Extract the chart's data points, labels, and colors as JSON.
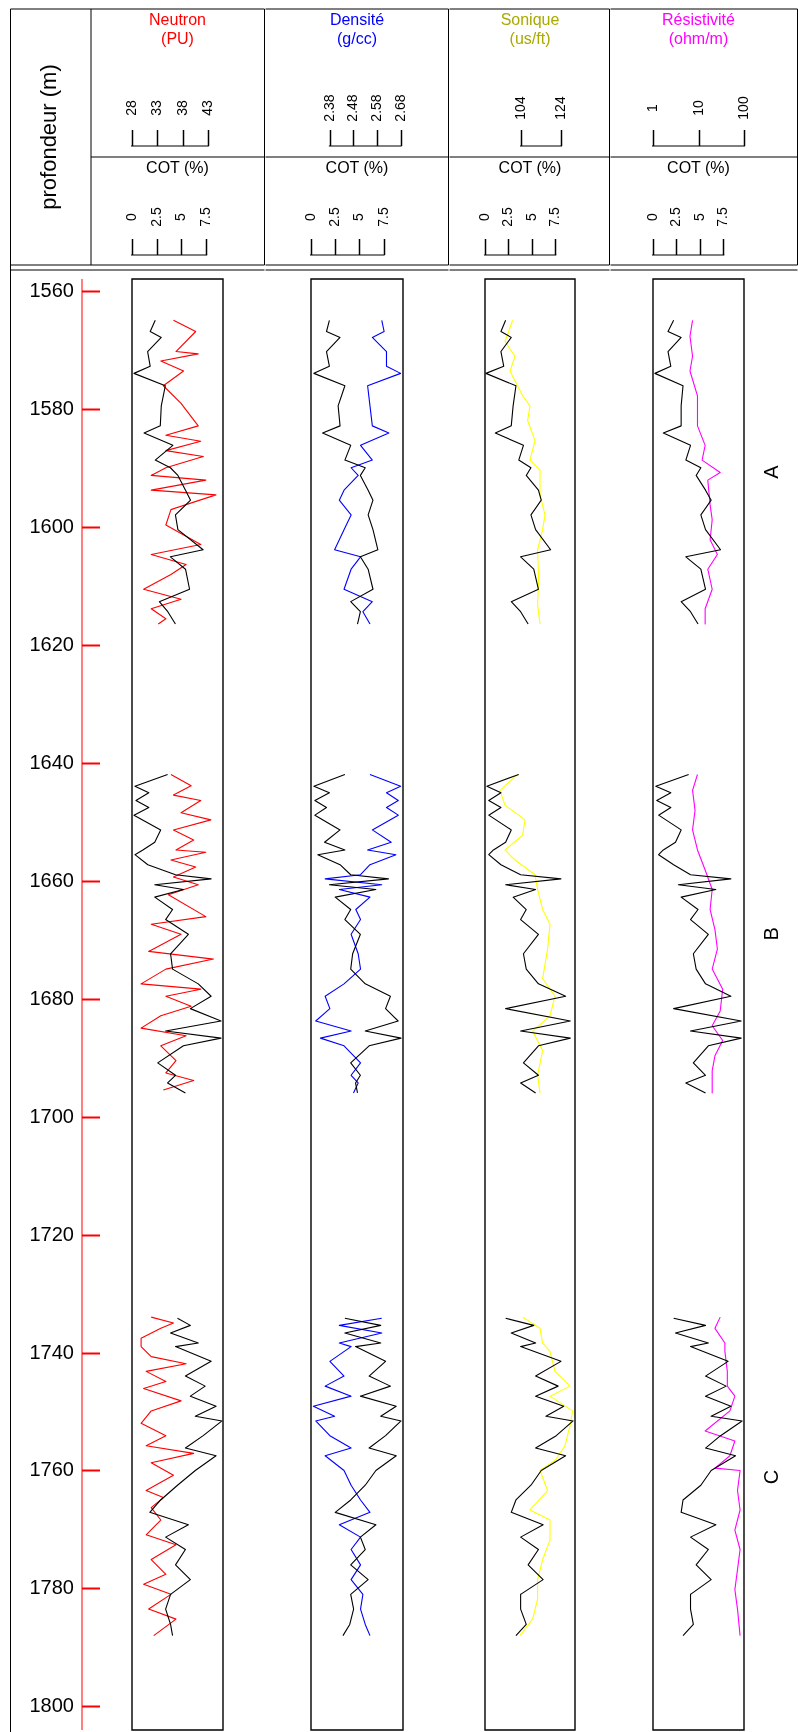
{
  "chart_data": [
    {
      "type": "line",
      "ylabel": "profondeur (m)",
      "xlabel": "Neutron (PU)",
      "x2label": "COT (%)",
      "x2lim": [
        0,
        9.2
      ],
      "x2ticks": [
        0,
        2.5,
        5,
        7.5
      ],
      "xlim": [
        28,
        46
      ],
      "xticks": [
        28,
        33,
        38,
        43
      ],
      "ylim": [
        1804,
        1558
      ],
      "yticks": [
        1560,
        1580,
        1600,
        1620,
        1640,
        1660,
        1680,
        1700,
        1720,
        1740,
        1760,
        1780,
        1800
      ],
      "series": [
        {
          "color": "#000000",
          "axis": "x2",
          "x": [
            2.35,
            1.84,
            2.96,
            1.58,
            1.84,
            0.2,
            3.37,
            2.96,
            2.86,
            1.22,
            4.13,
            2.35,
            3.88,
            4.64,
            5.41,
            5.92,
            4.39,
            4.64,
            7.19,
            3.88,
            5.41,
            5.82,
            2.76,
            3.62,
            4.39,
            null,
            3.6,
            0.3,
            1.7,
            0.4,
            1.7,
            0.2,
            2.9,
            2.3,
            1.1,
            0.3,
            1.6,
            4.4,
            8.0,
            2.3,
            5.2,
            2.3,
            4.1,
            3.4,
            5.7,
            3.9,
            4.1,
            6.7,
            8.0,
            5.9,
            9.0,
            3.4,
            9.0,
            5.2,
            2.6,
            4.4,
            3.6,
            5.4,
            null,
            4.6,
            5.9,
            3.9,
            6.7,
            4.4,
            8.0,
            5.4,
            7.4,
            5.9,
            8.5,
            6.4,
            9.1,
            7.2,
            5.4,
            8.5,
            6.4,
            4.6,
            2.9,
            1.8,
            5.7,
            3.4,
            5.4,
            4.4,
            5.9,
            3.9,
            3.4,
            3.9,
            4.1
          ],
          "values": [
            1565.0,
            1566.9,
            1567.9,
            1570.3,
            1572.8,
            1574.0,
            1576.1,
            1579.5,
            1582.9,
            1584.1,
            1586.2,
            1588.7,
            1590.0,
            1591.3,
            1593.8,
            1595.5,
            1598.0,
            1600.5,
            1603.9,
            1605.1,
            1607.2,
            1610.6,
            1612.7,
            1614.4,
            1616.5,
            null,
            1642.0,
            1644.0,
            1645.1,
            1646.4,
            1647.6,
            1648.9,
            1651.4,
            1653.5,
            1654.8,
            1655.6,
            1657.3,
            1659.0,
            1659.7,
            1660.7,
            1661.5,
            1662.8,
            1664.9,
            1666.6,
            1669.1,
            1672.4,
            1675.0,
            1677.5,
            1679.6,
            1681.7,
            1683.8,
            1685.5,
            1686.7,
            1688.0,
            1690.9,
            1693.0,
            1694.3,
            1696.0,
            null,
            1734.2,
            1735.4,
            1736.7,
            1738.4,
            1739.0,
            1741.5,
            1744.0,
            1745.7,
            1747.4,
            1749.1,
            1750.8,
            1751.6,
            1754.1,
            1756.2,
            1757.5,
            1760.0,
            1762.5,
            1765.0,
            1767.1,
            1769.2,
            1771.3,
            1773.4,
            1776.0,
            1778.5,
            1781.0,
            1783.5,
            1786.1,
            1788.0
          ]
        },
        {
          "color": "#ff0000",
          "x": [
            36.2,
            40.6,
            36.7,
            41.1,
            33.7,
            38.2,
            34.2,
            37.7,
            41.1,
            34.7,
            41.6,
            34.7,
            42.1,
            34.7,
            31.8,
            42.6,
            31.8,
            44.6,
            35.7,
            34.7,
            41.6,
            31.8,
            38.7,
            35.7,
            30.3,
            37.7,
            31.8,
            34.7,
            33.2,
            null,
            35.7,
            39.7,
            36.2,
            41.6,
            37.7,
            43.6,
            36.2,
            40.2,
            36.7,
            42.6,
            35.7,
            40.6,
            36.2,
            41.1,
            35.2,
            42.6,
            31.8,
            37.7,
            31.3,
            44.1,
            34.7,
            29.8,
            41.6,
            34.7,
            39.7,
            33.7,
            29.8,
            38.7,
            33.7,
            36.7,
            34.7,
            40.2,
            34.2,
            null,
            31.8,
            36.2,
            33.7,
            29.8,
            29.8,
            31.8,
            38.7,
            30.8,
            34.7,
            30.3,
            37.7,
            31.8,
            29.8,
            34.7,
            30.8,
            40.2,
            31.8,
            36.2,
            30.8,
            34.2,
            31.8,
            33.7,
            30.8,
            36.7,
            31.8,
            34.7,
            30.3,
            35.7,
            31.3,
            36.7,
            32.3
          ],
          "values": [
            1565.0,
            1566.9,
            1570.3,
            1570.7,
            1571.9,
            1573.6,
            1576.1,
            1579.1,
            1582.9,
            1584.5,
            1585.5,
            1587.1,
            1588.1,
            1590.0,
            1591.3,
            1592.1,
            1593.8,
            1594.6,
            1597.1,
            1599.7,
            1603.0,
            1604.7,
            1606.4,
            1608.1,
            1610.6,
            1612.3,
            1613.9,
            1615.6,
            1616.5,
            null,
            1642.0,
            1643.9,
            1645.5,
            1646.4,
            1648.5,
            1649.7,
            1651.4,
            1653.1,
            1654.8,
            1655.2,
            1656.5,
            1657.7,
            1659.4,
            1660.7,
            1662.4,
            1666.1,
            1667.4,
            1669.1,
            1672.0,
            1673.3,
            1675.0,
            1677.5,
            1678.4,
            1679.6,
            1681.3,
            1682.9,
            1685.0,
            1686.3,
            1688.0,
            1690.5,
            1692.6,
            1693.9,
            1695.5,
            null,
            1734.0,
            1735.0,
            1735.9,
            1737.6,
            1739.0,
            1740.7,
            1741.9,
            1743.2,
            1744.9,
            1746.1,
            1748.2,
            1749.9,
            1752.0,
            1754.1,
            1755.8,
            1757.1,
            1758.7,
            1760.8,
            1763.4,
            1764.6,
            1766.3,
            1768.4,
            1770.9,
            1772.6,
            1775.1,
            1777.6,
            1779.3,
            1781.0,
            1783.5,
            1785.2,
            1788.0
          ]
        }
      ]
    },
    {
      "type": "line",
      "xlabel": "Densité (g/cc)",
      "x2label": "COT (%)",
      "x2lim": [
        0,
        9.5
      ],
      "x2ticks": [
        0,
        2.5,
        5,
        7.5
      ],
      "xlim": [
        2.3,
        2.69
      ],
      "xticks": [
        2.38,
        2.48,
        2.58,
        2.68
      ],
      "ylim": [
        1804,
        1558
      ],
      "yticks": [
        1560,
        1580,
        1600,
        1620,
        1640,
        1660,
        1680,
        1700,
        1720,
        1740,
        1760,
        1780,
        1800
      ],
      "tick_labels": "x",
      "series": [
        {
          "color": "#000000",
          "axis": "x2",
          "x": [
            1.9,
            1.6,
            3.0,
            1.6,
            1.9,
            0.3,
            3.5,
            2.8,
            3.0,
            1.2,
            4.1,
            3.5,
            5.6,
            5.1,
            5.9,
            6.4,
            5.9,
            6.4,
            6.9,
            5.1,
            5.9,
            6.4,
            4.1,
            5.1,
            4.8,
            null,
            3.5,
            0.3,
            1.9,
            0.4,
            1.6,
            0.4,
            3.0,
            1.4,
            3.5,
            0.7,
            3.0,
            4.1,
            8.0,
            1.9,
            6.7,
            2.5,
            4.1,
            3.5,
            5.1,
            4.3,
            4.1,
            5.6,
            8.2,
            7.7,
            9.0,
            5.6,
            9.3,
            6.0,
            4.1,
            5.1,
            4.6,
            4.8,
            null,
            3.5,
            7.2,
            3.5,
            7.2,
            4.6,
            7.7,
            6.0,
            8.2,
            5.1,
            8.8,
            7.2,
            9.3,
            7.7,
            6.0,
            8.8,
            6.7,
            5.6,
            4.1,
            2.5,
            6.7,
            5.1,
            5.6,
            4.1,
            5.9,
            4.1,
            4.4,
            4.0,
            3.3
          ],
          "values": [
            1565.0,
            1566.9,
            1567.9,
            1570.3,
            1572.8,
            1574.0,
            1576.1,
            1579.5,
            1582.9,
            1584.1,
            1586.2,
            1588.7,
            1590.0,
            1591.3,
            1593.8,
            1595.5,
            1598.0,
            1600.5,
            1603.9,
            1605.1,
            1607.2,
            1610.6,
            1612.7,
            1614.4,
            1616.5,
            null,
            1642.0,
            1644.0,
            1645.1,
            1646.4,
            1647.6,
            1648.9,
            1651.4,
            1653.5,
            1654.8,
            1655.6,
            1657.3,
            1659.0,
            1659.7,
            1660.7,
            1661.5,
            1662.8,
            1664.9,
            1666.6,
            1669.1,
            1672.4,
            1675.0,
            1677.5,
            1679.6,
            1681.7,
            1683.8,
            1685.5,
            1686.7,
            1688.0,
            1690.9,
            1693.0,
            1694.3,
            1696.0,
            null,
            1734.2,
            1735.4,
            1736.7,
            1738.4,
            1739.0,
            1741.5,
            1744.0,
            1745.7,
            1747.4,
            1749.1,
            1750.8,
            1751.6,
            1754.1,
            1756.2,
            1757.5,
            1760.0,
            1762.5,
            1765.0,
            1767.1,
            1769.2,
            1771.3,
            1773.4,
            1776.0,
            1778.5,
            1781.0,
            1783.5,
            1786.1,
            1788.0
          ]
        },
        {
          "color": "#0000ff",
          "x": [
            2.6,
            2.61,
            2.56,
            2.62,
            2.62,
            2.68,
            2.54,
            2.55,
            2.56,
            2.63,
            2.51,
            2.56,
            2.47,
            2.5,
            2.44,
            2.42,
            2.47,
            2.44,
            2.4,
            2.51,
            2.47,
            2.44,
            2.56,
            2.52,
            2.55,
            null,
            2.55,
            2.68,
            2.62,
            2.67,
            2.62,
            2.67,
            2.56,
            2.64,
            2.54,
            2.66,
            2.55,
            2.51,
            2.36,
            2.6,
            2.42,
            2.55,
            2.49,
            2.51,
            2.47,
            2.5,
            2.51,
            2.44,
            2.36,
            2.38,
            2.32,
            2.47,
            2.34,
            2.44,
            2.51,
            2.47,
            2.5,
            2.48,
            null,
            2.6,
            2.42,
            2.6,
            2.42,
            2.47,
            2.38,
            2.44,
            2.36,
            2.47,
            2.31,
            2.4,
            2.32,
            2.38,
            2.47,
            2.36,
            2.44,
            2.47,
            2.51,
            2.55,
            2.42,
            2.51,
            2.47,
            2.51,
            2.47,
            2.52,
            2.51,
            2.53,
            2.55
          ],
          "values": [
            1565.0,
            1566.9,
            1567.9,
            1570.3,
            1572.8,
            1574.0,
            1576.1,
            1579.5,
            1582.9,
            1584.1,
            1586.2,
            1588.7,
            1590.0,
            1591.3,
            1593.8,
            1595.5,
            1598.0,
            1600.5,
            1603.9,
            1605.1,
            1607.2,
            1610.6,
            1612.7,
            1614.4,
            1616.5,
            null,
            1642.0,
            1644.0,
            1645.1,
            1646.4,
            1647.6,
            1648.9,
            1651.4,
            1653.5,
            1654.8,
            1655.6,
            1657.3,
            1659.0,
            1659.7,
            1660.7,
            1661.5,
            1662.8,
            1664.9,
            1666.6,
            1669.1,
            1672.4,
            1675.0,
            1677.5,
            1679.6,
            1681.7,
            1683.8,
            1685.5,
            1686.7,
            1688.0,
            1690.9,
            1693.0,
            1694.3,
            1696.0,
            null,
            1734.2,
            1735.4,
            1736.7,
            1738.4,
            1739.0,
            1741.5,
            1744.0,
            1745.7,
            1747.4,
            1749.1,
            1750.8,
            1751.6,
            1754.1,
            1756.2,
            1757.5,
            1760.0,
            1762.5,
            1765.0,
            1767.1,
            1769.2,
            1771.3,
            1773.4,
            1776.0,
            1778.5,
            1781.0,
            1783.5,
            1786.1,
            1788.0
          ]
        }
      ]
    },
    {
      "type": "line",
      "xlabel": "Sonique (us/ft)",
      "x2label": "COT (%)",
      "x2lim": [
        0,
        9.6
      ],
      "x2ticks": [
        0,
        2.5,
        5,
        7.5
      ],
      "xlim": [
        86,
        131
      ],
      "xticks": [
        104,
        124
      ],
      "ylim": [
        1804,
        1558
      ],
      "yticks": [
        1560,
        1580,
        1600,
        1620,
        1640,
        1660,
        1680,
        1700,
        1720,
        1740,
        1760,
        1780,
        1800
      ],
      "tick_labels": "x",
      "series": [
        {
          "color": "#000000",
          "axis": "x2",
          "x": [
            2.2,
            1.7,
            2.8,
            1.7,
            2.0,
            0.1,
            3.3,
            3.0,
            2.8,
            1.1,
            4.1,
            3.6,
            4.9,
            4.4,
            5.7,
            6.0,
            4.9,
            5.4,
            7.0,
            3.8,
            5.2,
            5.7,
            2.8,
            3.8,
            4.6,
            null,
            3.6,
            0.2,
            1.7,
            0.4,
            1.7,
            0.4,
            2.8,
            2.2,
            0.9,
            0.4,
            1.7,
            3.8,
            8.1,
            2.2,
            5.4,
            3.0,
            4.4,
            3.8,
            5.7,
            4.1,
            4.4,
            5.7,
            8.6,
            2.2,
            9.1,
            3.8,
            9.1,
            5.7,
            4.1,
            5.7,
            3.8,
            5.4,
            null,
            2.2,
            5.2,
            2.8,
            5.4,
            3.8,
            8.1,
            5.4,
            7.8,
            5.4,
            8.4,
            6.5,
            9.4,
            7.6,
            5.4,
            8.6,
            6.0,
            4.9,
            3.3,
            2.8,
            6.2,
            3.8,
            5.7,
            4.6,
            6.2,
            3.8,
            3.8,
            4.4,
            3.3
          ],
          "values": [
            1565.0,
            1566.9,
            1567.9,
            1570.3,
            1572.8,
            1574.0,
            1576.1,
            1579.5,
            1582.9,
            1584.1,
            1586.2,
            1588.7,
            1590.0,
            1591.3,
            1593.8,
            1595.5,
            1598.0,
            1600.5,
            1603.9,
            1605.1,
            1607.2,
            1610.6,
            1612.7,
            1614.4,
            1616.5,
            null,
            1642.0,
            1644.0,
            1645.1,
            1646.4,
            1647.6,
            1648.9,
            1651.4,
            1653.5,
            1654.8,
            1655.6,
            1657.3,
            1659.0,
            1659.7,
            1660.7,
            1661.5,
            1662.8,
            1664.9,
            1666.6,
            1669.1,
            1672.4,
            1675.0,
            1677.5,
            1679.6,
            1681.7,
            1683.8,
            1685.5,
            1686.7,
            1688.0,
            1690.9,
            1693.0,
            1694.3,
            1696.0,
            null,
            1734.2,
            1735.4,
            1736.7,
            1738.4,
            1739.0,
            1741.5,
            1744.0,
            1745.7,
            1747.4,
            1749.1,
            1750.8,
            1751.6,
            1754.1,
            1756.2,
            1757.5,
            1760.0,
            1762.5,
            1765.0,
            1767.1,
            1769.2,
            1771.3,
            1773.4,
            1776.0,
            1778.5,
            1781.0,
            1783.5,
            1786.1,
            1788.0
          ]
        },
        {
          "color": "#ffff00",
          "x": [
            99.8,
            96,
            101,
            98.5,
            104.8,
            108.5,
            107.3,
            111,
            108.5,
            113.5,
            113.5,
            116,
            114.8,
            112.3,
            112.8,
            112.3,
            113.5,
            null,
            102.3,
            93.5,
            96,
            106,
            104.8,
            96,
            101,
            111,
            112.3,
            114.8,
            118.5,
            117.3,
            114.8,
            121,
            118.5,
            109.8,
            114.8,
            112.3,
            113.5,
            null,
            104.8,
            113.5,
            114.8,
            118.5,
            121,
            128.5,
            118.5,
            129.8,
            128.5,
            126,
            121,
            113.5,
            117.3,
            108.5,
            118.5,
            118.5,
            114.8,
            112.3,
            112.3,
            109.8,
            103.5
          ],
          "values": [
            1565.0,
            1568.6,
            1571.1,
            1573.6,
            1577.8,
            1579.5,
            1582.0,
            1585.4,
            1588.7,
            1590.4,
            1594.6,
            1598.0,
            1600.5,
            1603.9,
            1608.9,
            1613.1,
            1616.5,
            null,
            1642.0,
            1644.7,
            1647.2,
            1649.7,
            1652.3,
            1654.8,
            1656.5,
            1659.0,
            1661.5,
            1664.9,
            1667.4,
            1671.6,
            1676.6,
            1679.6,
            1682.9,
            1685.5,
            1688.8,
            1693.0,
            1696.0,
            null,
            1734.0,
            1735.9,
            1738.4,
            1739.8,
            1743.2,
            1745.7,
            1747.4,
            1749.9,
            1752.4,
            1755.8,
            1758.3,
            1760.0,
            1763.4,
            1766.7,
            1768.4,
            1771.8,
            1775.1,
            1778.5,
            1781.8,
            1785.2,
            1788.0
          ]
        }
      ]
    },
    {
      "type": "line",
      "xlabel": "Résistivité (ohm/m)",
      "x2label": "COT (%)",
      "x2lim": [
        0,
        9.7
      ],
      "x2ticks": [
        0,
        2.5,
        5,
        7.5
      ],
      "xlim": [
        1,
        100
      ],
      "xticks": [
        1,
        10,
        100
      ],
      "log": "x",
      "ylim": [
        1804,
        1558
      ],
      "yticks": [
        1560,
        1580,
        1600,
        1620,
        1640,
        1660,
        1680,
        1700,
        1720,
        1740,
        1760,
        1780,
        1800
      ],
      "tick_labels": "x",
      "annotations": [
        "A",
        "B",
        "C"
      ],
      "series": [
        {
          "color": "#000000",
          "axis": "x2",
          "x": [
            2.2,
            1.6,
            3.0,
            1.6,
            1.9,
            0.2,
            3.2,
            3.0,
            3.0,
            1.1,
            4.0,
            3.5,
            5.1,
            4.6,
            5.6,
            6.2,
            5.1,
            5.6,
            7.2,
            3.5,
            5.1,
            5.6,
            3.0,
            4.0,
            4.8,
            null,
            3.8,
            0.3,
            1.9,
            0.4,
            1.9,
            0.6,
            3.0,
            2.4,
            1.1,
            0.6,
            2.2,
            4.0,
            8.3,
            2.7,
            6.7,
            3.0,
            4.8,
            4.0,
            5.9,
            4.3,
            4.6,
            5.6,
            8.3,
            2.2,
            9.4,
            4.0,
            9.4,
            5.9,
            4.3,
            5.6,
            3.5,
            5.6,
            null,
            2.2,
            5.6,
            2.4,
            5.9,
            4.0,
            8.0,
            5.6,
            7.8,
            5.6,
            8.3,
            6.2,
            9.5,
            7.2,
            5.6,
            8.8,
            6.2,
            5.1,
            3.2,
            3.0,
            6.7,
            4.0,
            5.9,
            4.6,
            6.2,
            4.0,
            4.0,
            4.3,
            3.2
          ],
          "values": [
            1565.0,
            1566.9,
            1567.9,
            1570.3,
            1572.8,
            1574.0,
            1576.1,
            1579.5,
            1582.9,
            1584.1,
            1586.2,
            1588.7,
            1590.0,
            1591.3,
            1593.8,
            1595.5,
            1598.0,
            1600.5,
            1603.9,
            1605.1,
            1607.2,
            1610.6,
            1612.7,
            1614.4,
            1616.5,
            null,
            1642.0,
            1644.0,
            1645.1,
            1646.4,
            1647.6,
            1648.9,
            1651.4,
            1653.5,
            1654.8,
            1655.6,
            1657.3,
            1659.0,
            1659.7,
            1660.7,
            1661.5,
            1662.8,
            1664.9,
            1666.6,
            1669.1,
            1672.4,
            1675.0,
            1677.5,
            1679.6,
            1681.7,
            1683.8,
            1685.5,
            1686.7,
            1688.0,
            1690.9,
            1693.0,
            1694.3,
            1696.0,
            null,
            1734.2,
            1735.4,
            1736.7,
            1738.4,
            1739.0,
            1741.5,
            1744.0,
            1745.7,
            1747.4,
            1749.1,
            1750.8,
            1751.6,
            1754.1,
            1756.2,
            1757.5,
            1760.0,
            1762.5,
            1765.0,
            1767.1,
            1769.2,
            1771.3,
            1773.4,
            1776.0,
            1778.5,
            1781.0,
            1783.5,
            1786.1,
            1788.0
          ]
        },
        {
          "color": "#ff00ff",
          "x": [
            7.4,
            6.5,
            7.4,
            6.5,
            9.5,
            9.5,
            14,
            12,
            30,
            16,
            18,
            20,
            18,
            26,
            16,
            20,
            14,
            14,
            null,
            9.5,
            7.4,
            8.4,
            7.4,
            9.5,
            14,
            20,
            18,
            23,
            26,
            20,
            34,
            30,
            20,
            34,
            23,
            20,
            20,
            null,
            30,
            23,
            38,
            38,
            43,
            43,
            63,
            49,
            14,
            63,
            49,
            23,
            82,
            72,
            82,
            63,
            82,
            72,
            63,
            72,
            82
          ],
          "values": [
            1565.0,
            1567.7,
            1571.1,
            1573.6,
            1577.8,
            1582.9,
            1586.2,
            1588.7,
            1590.8,
            1592.1,
            1596.3,
            1598.8,
            1602.2,
            1604.7,
            1607.2,
            1610.6,
            1613.9,
            1616.5,
            null,
            1642.0,
            1644.7,
            1648.1,
            1651.4,
            1654.8,
            1658.2,
            1661.5,
            1664.9,
            1668.3,
            1671.6,
            1675.0,
            1678.4,
            1682.1,
            1684.6,
            1687.1,
            1689.7,
            1692.2,
            1696.0,
            null,
            1734.0,
            1735.9,
            1738.4,
            1739.8,
            1743.2,
            1745.7,
            1747.4,
            1749.9,
            1753.3,
            1755.0,
            1757.5,
            1759.6,
            1760.0,
            1763.4,
            1766.7,
            1770.1,
            1773.4,
            1776.8,
            1780.2,
            1783.5,
            1788.0
          ]
        }
      ]
    }
  ]
}
